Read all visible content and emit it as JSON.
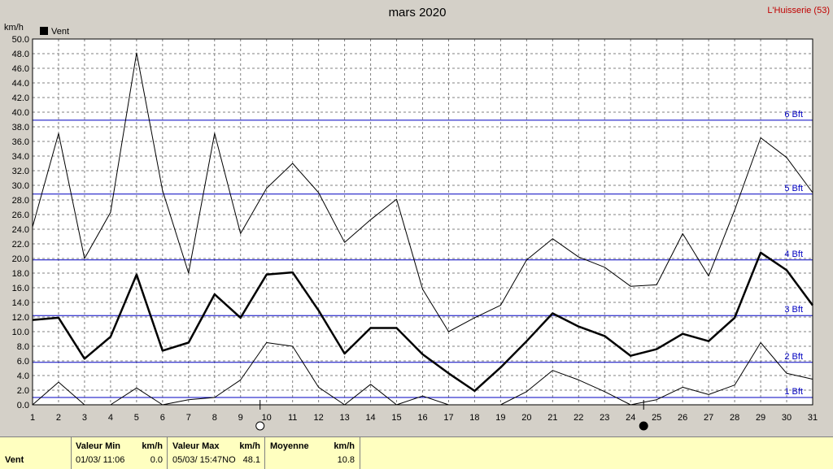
{
  "station": "L'Huisserie (53)",
  "chart_data": {
    "type": "line",
    "title": "mars 2020",
    "unit_label": "km/h",
    "legend": "Vent",
    "ylim": [
      0,
      50
    ],
    "y_ticks": [
      "0.0",
      "2.0",
      "4.0",
      "6.0",
      "8.0",
      "10.0",
      "12.0",
      "14.0",
      "16.0",
      "18.0",
      "20.0",
      "22.0",
      "24.0",
      "26.0",
      "28.0",
      "30.0",
      "32.0",
      "34.0",
      "36.0",
      "38.0",
      "40.0",
      "42.0",
      "44.0",
      "46.0",
      "48.0",
      "50.0"
    ],
    "x": [
      1,
      2,
      3,
      4,
      5,
      6,
      7,
      8,
      9,
      10,
      11,
      12,
      13,
      14,
      15,
      16,
      17,
      18,
      19,
      20,
      21,
      22,
      23,
      24,
      25,
      26,
      27,
      28,
      29,
      30,
      31
    ],
    "series": [
      {
        "role": "max",
        "values": [
          24.3,
          37.1,
          20.0,
          26.3,
          48.1,
          29.3,
          18.0,
          37.1,
          23.4,
          29.6,
          33.0,
          29.0,
          22.2,
          25.3,
          28.1,
          15.8,
          10.0,
          11.9,
          13.6,
          19.8,
          22.7,
          20.2,
          18.8,
          16.2,
          16.4,
          23.4,
          17.6,
          26.6,
          36.5,
          33.8,
          29.0
        ]
      },
      {
        "role": "mean",
        "values": [
          11.6,
          11.9,
          6.3,
          9.3,
          17.8,
          7.4,
          8.5,
          15.1,
          11.9,
          17.8,
          18.1,
          12.9,
          7.0,
          10.5,
          10.5,
          6.9,
          4.3,
          1.9,
          5.1,
          8.7,
          12.5,
          10.7,
          9.4,
          6.7,
          7.6,
          9.7,
          8.7,
          11.9,
          20.8,
          18.4,
          13.6
        ]
      },
      {
        "role": "min",
        "values": [
          0.0,
          3.1,
          0.0,
          0.0,
          2.3,
          0.0,
          0.7,
          1.0,
          3.4,
          8.5,
          8.0,
          2.4,
          0.0,
          2.8,
          0.0,
          1.2,
          0.0,
          null,
          0.0,
          1.8,
          4.7,
          3.4,
          1.8,
          0.0,
          0.7,
          2.4,
          1.4,
          2.7,
          8.5,
          4.3,
          3.5
        ]
      }
    ],
    "beaufort": [
      {
        "label": "1 Bft",
        "value": 1.0
      },
      {
        "label": "2 Bft",
        "value": 5.8
      },
      {
        "label": "3 Bft",
        "value": 12.2
      },
      {
        "label": "4 Bft",
        "value": 19.8
      },
      {
        "label": "5 Bft",
        "value": 28.8
      },
      {
        "label": "6 Bft",
        "value": 38.9
      }
    ],
    "moon": [
      {
        "day": 9.75,
        "phase": "full"
      },
      {
        "day": 24.5,
        "phase": "new"
      }
    ],
    "colors": {
      "mean": "#000000",
      "minmax": "#000000",
      "beaufort": "#0000c0",
      "grid": "#808080",
      "title_station": "#c00000"
    }
  },
  "footer": {
    "row_label": "Vent",
    "min_header": "Valeur Min",
    "min_unit": "km/h",
    "min_date": "01/03/  11:06",
    "min_value": "0.0",
    "max_header": "Valeur Max",
    "max_unit": "km/h",
    "max_date": "05/03/  15:47NO",
    "max_value": "48.1",
    "mean_header": "Moyenne",
    "mean_unit": "km/h",
    "mean_value": "10.8"
  }
}
